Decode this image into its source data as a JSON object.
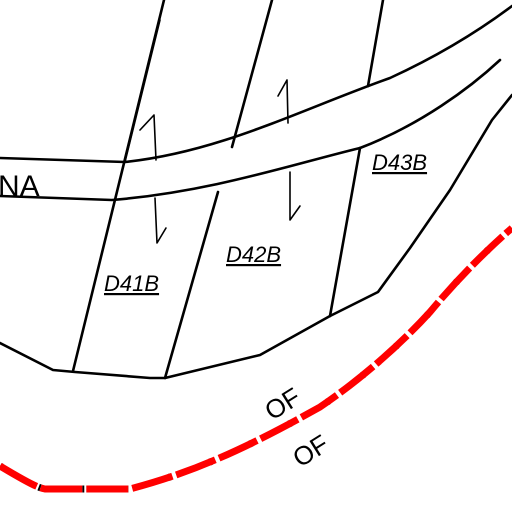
{
  "road": {
    "label": "NA"
  },
  "parcels": [
    {
      "id": "D41B"
    },
    {
      "id": "D42B"
    },
    {
      "id": "D43B"
    }
  ],
  "boundary": {
    "labels": [
      "OF",
      "OF"
    ],
    "color": "#ff0000"
  }
}
